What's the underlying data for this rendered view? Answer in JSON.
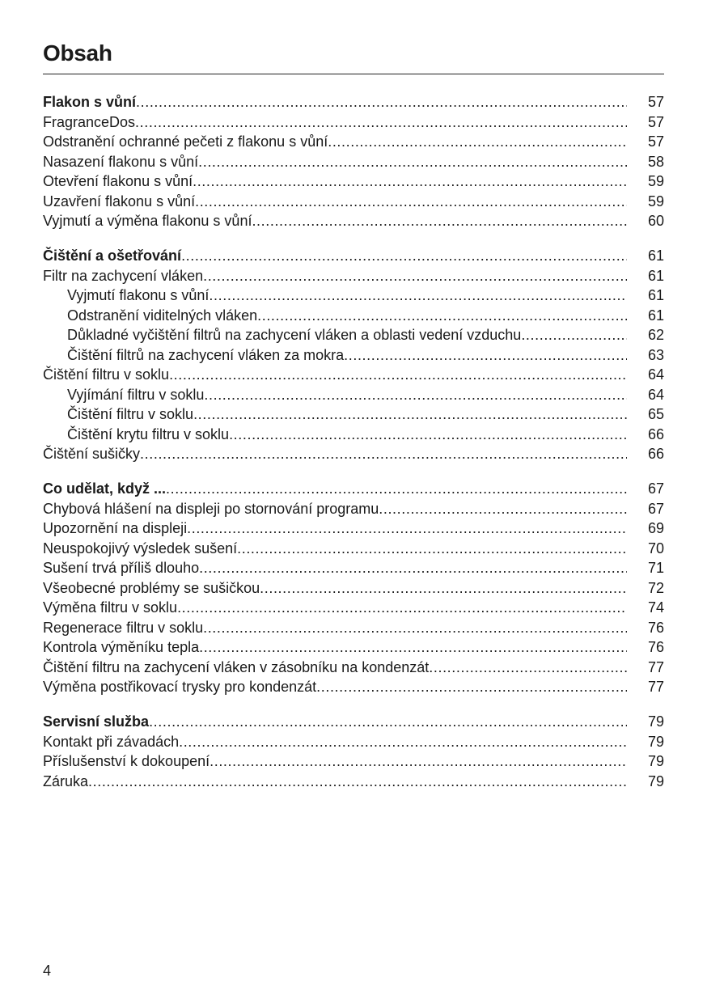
{
  "header": {
    "title": "Obsah"
  },
  "sections": [
    {
      "entries": [
        {
          "title": "Flakon s vůní",
          "page": "57",
          "bold": true
        },
        {
          "title": "FragranceDos",
          "page": "57"
        },
        {
          "title": "Odstranění ochranné pečeti z flakonu s vůní",
          "page": "57"
        },
        {
          "title": "Nasazení flakonu s vůní",
          "page": "58"
        },
        {
          "title": "Otevření flakonu s vůní",
          "page": "59"
        },
        {
          "title": "Uzavření flakonu s vůní",
          "page": "59"
        },
        {
          "title": "Vyjmutí a výměna flakonu s vůní",
          "page": "60"
        }
      ]
    },
    {
      "entries": [
        {
          "title": "Čištění a ošetřování",
          "page": "61",
          "bold": true
        },
        {
          "title": "Filtr na zachycení vláken",
          "page": "61"
        },
        {
          "title": "Vyjmutí flakonu s vůní",
          "page": "61",
          "sub": true
        },
        {
          "title": "Odstranění viditelných vláken",
          "page": "61",
          "sub": true
        },
        {
          "title": "Důkladné vyčištění filtrů na zachycení vláken a oblasti vedení vzduchu",
          "page": "62",
          "sub": true
        },
        {
          "title": "Čištění filtrů na zachycení vláken za mokra",
          "page": "63",
          "sub": true
        },
        {
          "title": "Čištění filtru v soklu",
          "page": "64"
        },
        {
          "title": "Vyjímání filtru v soklu",
          "page": "64",
          "sub": true
        },
        {
          "title": "Čištění filtru v soklu",
          "page": "65",
          "sub": true
        },
        {
          "title": "Čištění krytu filtru v soklu",
          "page": "66",
          "sub": true
        },
        {
          "title": "Čištění sušičky",
          "page": "66"
        }
      ]
    },
    {
      "entries": [
        {
          "title": "Co udělat, když ...",
          "page": "67",
          "bold": true
        },
        {
          "title": "Chybová hlášení na displeji po stornování programu",
          "page": "67"
        },
        {
          "title": "Upozornění na displeji",
          "page": "69"
        },
        {
          "title": "Neuspokojivý výsledek sušení",
          "page": "70"
        },
        {
          "title": "Sušení trvá příliš dlouho",
          "page": "71"
        },
        {
          "title": "Všeobecné problémy se sušičkou",
          "page": "72"
        },
        {
          "title": "Výměna filtru v soklu",
          "page": "74"
        },
        {
          "title": "Regenerace filtru v soklu",
          "page": "76"
        },
        {
          "title": "Kontrola výměníku tepla",
          "page": "76"
        },
        {
          "title": "Čištění filtru na zachycení vláken v zásobníku na kondenzát",
          "page": "77"
        },
        {
          "title": "Výměna postřikovací trysky pro kondenzát",
          "page": "77"
        }
      ]
    },
    {
      "entries": [
        {
          "title": "Servisní služba",
          "page": "79",
          "bold": true
        },
        {
          "title": "Kontakt při závadách",
          "page": "79"
        },
        {
          "title": "Příslušenství k dokoupení",
          "page": "79"
        },
        {
          "title": "Záruka",
          "page": "79"
        }
      ]
    }
  ],
  "footer": {
    "page_number": "4"
  }
}
